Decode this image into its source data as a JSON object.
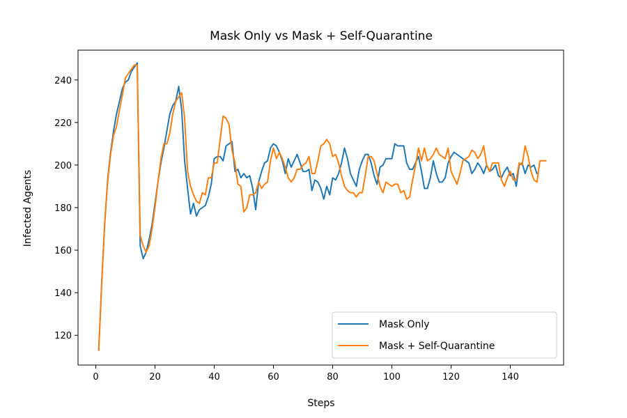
{
  "chart_data": {
    "type": "line",
    "title": "Mask Only vs Mask + Self-Quarantine",
    "xlabel": "Steps",
    "ylabel": "Infected Agents",
    "xlim": [
      -6,
      158
    ],
    "ylim": [
      106,
      254
    ],
    "xticks": [
      0,
      20,
      40,
      60,
      80,
      100,
      120,
      140
    ],
    "yticks": [
      120,
      140,
      160,
      180,
      200,
      220,
      240
    ],
    "grid": false,
    "legend_position": "lower right",
    "series": [
      {
        "name": "Mask Only",
        "color": "#1f77b4",
        "x_start": 1,
        "values": [
          113,
          145,
          172,
          193,
          206,
          216,
          224,
          230,
          236,
          239,
          240,
          244,
          246,
          248,
          162,
          156,
          159,
          165,
          172,
          182,
          192,
          201,
          208,
          216,
          224,
          228,
          230,
          237,
          226,
          202,
          189,
          177,
          182,
          176,
          179,
          180,
          181,
          185,
          191,
          203,
          204,
          204,
          202,
          209,
          210,
          211,
          197,
          198,
          194,
          196,
          194,
          195,
          189,
          179,
          192,
          197,
          201,
          202,
          208,
          210,
          209,
          206,
          202,
          196,
          203,
          199,
          202,
          205,
          201,
          197,
          197,
          198,
          188,
          193,
          192,
          189,
          184,
          190,
          186,
          194,
          193,
          196,
          201,
          208,
          203,
          196,
          193,
          190,
          198,
          202,
          205,
          205,
          201,
          195,
          191,
          199,
          200,
          203,
          203,
          203,
          210,
          209,
          209,
          209,
          201,
          198,
          198,
          201,
          204,
          197,
          189,
          189,
          194,
          202,
          196,
          192,
          192,
          194,
          201,
          204,
          206,
          205,
          204,
          203,
          202,
          201,
          196,
          198,
          201,
          199,
          196,
          200,
          197,
          198,
          200,
          195,
          194,
          197,
          199,
          195,
          196,
          190,
          200,
          201,
          196,
          200,
          199,
          200,
          196
        ],
        "points_note": ""
      },
      {
        "name": "Mask + Self-Quarantine",
        "color": "#ff7f0e",
        "x_start": 1,
        "values": [
          113,
          144,
          173,
          192,
          205,
          214,
          218,
          226,
          233,
          241,
          243,
          245,
          247,
          247,
          167,
          162,
          159,
          162,
          170,
          180,
          192,
          203,
          210,
          210,
          215,
          224,
          230,
          232,
          234,
          222,
          197,
          190,
          186,
          183,
          182,
          187,
          186,
          194,
          194,
          201,
          201,
          212,
          223,
          222,
          219,
          207,
          201,
          191,
          190,
          178,
          180,
          186,
          186,
          187,
          192,
          189,
          191,
          192,
          202,
          208,
          203,
          206,
          203,
          199,
          194,
          192,
          194,
          198,
          198,
          200,
          201,
          204,
          196,
          196,
          202,
          209,
          210,
          212,
          210,
          204,
          205,
          201,
          195,
          190,
          188,
          187,
          187,
          185,
          187,
          187,
          195,
          204,
          204,
          202,
          196,
          190,
          187,
          192,
          191,
          190,
          191,
          191,
          187,
          188,
          184,
          185,
          193,
          200,
          208,
          202,
          208,
          202,
          203,
          205,
          208,
          205,
          204,
          203,
          208,
          197,
          194,
          191,
          196,
          202,
          203,
          204,
          207,
          206,
          203,
          205,
          209,
          200,
          197,
          201,
          201,
          201,
          193,
          190,
          194,
          197,
          193,
          193,
          201,
          200,
          209,
          204,
          197,
          193,
          192,
          202,
          202,
          202
        ],
        "points_note": ""
      }
    ]
  }
}
